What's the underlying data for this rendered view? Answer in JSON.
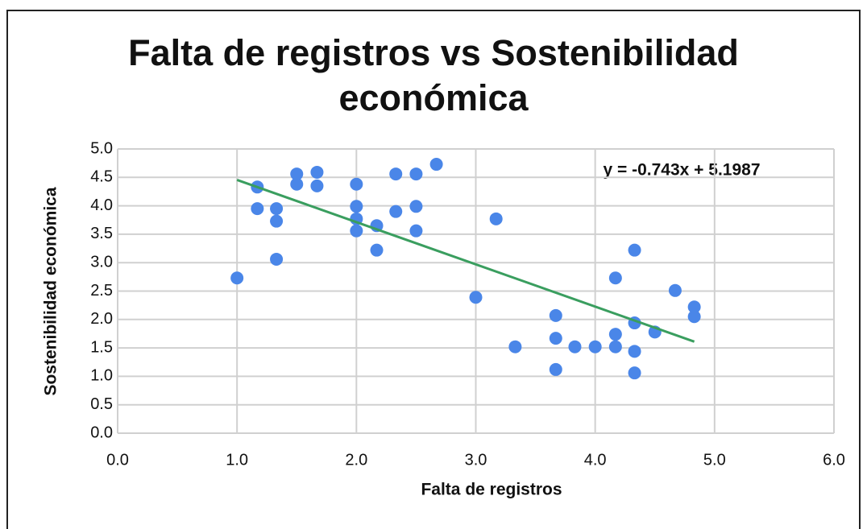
{
  "chart_data": {
    "type": "scatter",
    "title": "Falta de registros vs Sostenibilidad económica",
    "x_label": "Falta de registros",
    "y_label": "Sostenibilidad económica",
    "annotation": "y = -0.743x + 5.1987",
    "color": "#4a86e8",
    "grid": true,
    "x": [
      1.0,
      1.17,
      1.17,
      1.33,
      1.33,
      1.33,
      1.5,
      1.5,
      1.67,
      1.67,
      2.0,
      2.0,
      2.0,
      2.0,
      2.17,
      2.17,
      2.33,
      2.33,
      2.5,
      2.5,
      2.5,
      2.67,
      3.0,
      3.17,
      3.33,
      3.67,
      3.67,
      3.67,
      3.83,
      4.0,
      4.17,
      4.17,
      4.17,
      4.33,
      4.33,
      4.33,
      4.33,
      4.5,
      4.67,
      4.83,
      4.83
    ],
    "values": [
      2.73,
      4.33,
      3.95,
      3.95,
      3.73,
      3.06,
      4.56,
      4.38,
      4.59,
      4.35,
      4.38,
      3.99,
      3.77,
      3.56,
      3.65,
      3.22,
      4.56,
      3.9,
      4.56,
      3.99,
      3.56,
      4.73,
      2.39,
      3.77,
      1.52,
      2.07,
      1.67,
      1.12,
      1.52,
      1.52,
      2.73,
      1.74,
      1.52,
      3.22,
      1.94,
      1.44,
      1.06,
      1.78,
      2.51,
      2.22,
      2.05
    ],
    "trendline": {
      "slope": -0.743,
      "intercept": 5.1987,
      "x_range": [
        1.0,
        4.83
      ],
      "color": "#3a9e5f"
    },
    "xlim": [
      0,
      6
    ],
    "xticks": [
      {
        "value": 0,
        "label": "0.0"
      },
      {
        "value": 1,
        "label": "1.0"
      },
      {
        "value": 2,
        "label": "2.0"
      },
      {
        "value": 3,
        "label": "3.0"
      },
      {
        "value": 4,
        "label": "4.0"
      },
      {
        "value": 5,
        "label": "5.0"
      },
      {
        "value": 6,
        "label": "6.0"
      }
    ],
    "ylim": [
      0,
      5
    ],
    "yticks": [
      {
        "value": 0,
        "label": "0.0"
      },
      {
        "value": 0.5,
        "label": "0.5"
      },
      {
        "value": 1,
        "label": "1.0"
      },
      {
        "value": 1.5,
        "label": "1.5"
      },
      {
        "value": 2,
        "label": "2.0"
      },
      {
        "value": 2.5,
        "label": "2.5"
      },
      {
        "value": 3,
        "label": "3.0"
      },
      {
        "value": 3.5,
        "label": "3.5"
      },
      {
        "value": 4,
        "label": "4.0"
      },
      {
        "value": 4.5,
        "label": "4.5"
      },
      {
        "value": 5,
        "label": "5.0"
      }
    ]
  }
}
